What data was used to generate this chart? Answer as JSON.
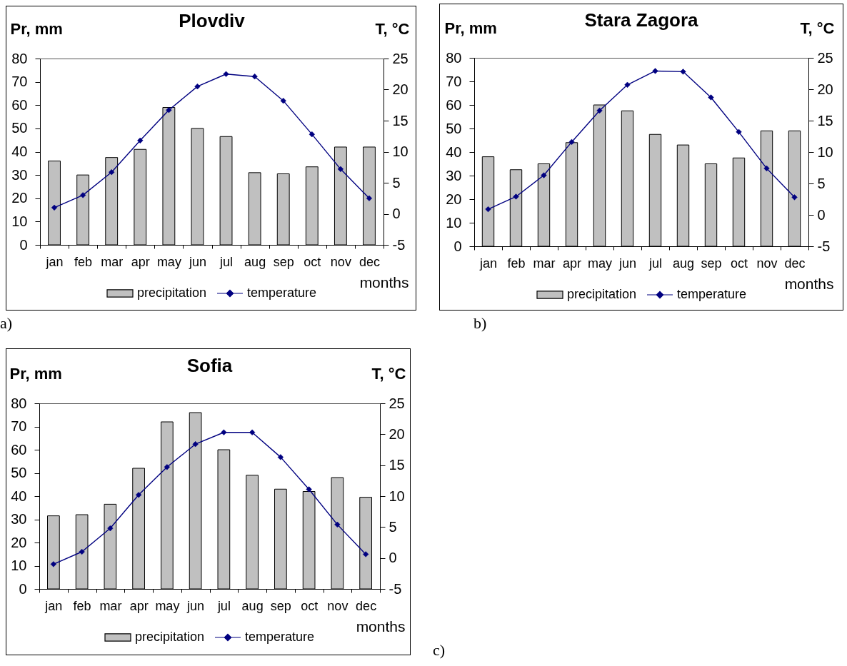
{
  "chart_data": [
    {
      "type": "bar",
      "title": "Plovdiv",
      "ylabel": "Pr, mm",
      "y2label": "T, °C",
      "xlabel": "months",
      "categories": [
        "jan",
        "feb",
        "mar",
        "apr",
        "may",
        "jun",
        "jul",
        "aug",
        "sep",
        "oct",
        "nov",
        "dec"
      ],
      "series": [
        {
          "name": "precipitation",
          "color": "#c0c0c0",
          "values": [
            36,
            30,
            37.5,
            41,
            59,
            50,
            46.5,
            31,
            30.5,
            33.5,
            42,
            42
          ]
        },
        {
          "name": "temperature",
          "type": "line",
          "axis": "y2",
          "color": "#000080",
          "values": [
            1.0,
            3.0,
            6.7,
            11.8,
            16.7,
            20.5,
            22.5,
            22.1,
            18.2,
            12.8,
            7.2,
            2.5
          ]
        }
      ],
      "ylim": [
        0,
        80
      ],
      "yticks": [
        0,
        10,
        20,
        30,
        40,
        50,
        60,
        70,
        80
      ],
      "y2lim": [
        -5,
        25
      ],
      "y2ticks": [
        -5,
        0,
        5,
        10,
        15,
        20,
        25
      ],
      "legend": "bottom",
      "marker": "diamond",
      "line_style": "solid",
      "annotations": [
        "a)"
      ]
    },
    {
      "type": "bar",
      "title": "Stara Zagora",
      "ylabel": "Pr, mm",
      "y2label": "T, °C",
      "xlabel": "months",
      "categories": [
        "jan",
        "feb",
        "mar",
        "apr",
        "may",
        "jun",
        "jul",
        "aug",
        "sep",
        "oct",
        "nov",
        "dec"
      ],
      "series": [
        {
          "name": "precipitation",
          "color": "#c0c0c0",
          "values": [
            38,
            32.5,
            35,
            44,
            60,
            57.5,
            47.5,
            43,
            35,
            37.5,
            49,
            49
          ]
        },
        {
          "name": "temperature",
          "type": "line",
          "axis": "y2",
          "color": "#000080",
          "values": [
            0.9,
            2.9,
            6.3,
            11.6,
            16.6,
            20.7,
            22.9,
            22.8,
            18.7,
            13.2,
            7.4,
            2.8
          ]
        }
      ],
      "ylim": [
        0,
        80
      ],
      "yticks": [
        0,
        10,
        20,
        30,
        40,
        50,
        60,
        70,
        80
      ],
      "y2lim": [
        -5,
        25
      ],
      "y2ticks": [
        -5,
        0,
        5,
        10,
        15,
        20,
        25
      ],
      "legend": "bottom",
      "marker": "diamond",
      "line_style": "solid",
      "annotations": [
        "b)"
      ]
    },
    {
      "type": "bar",
      "title": "Sofia",
      "ylabel": "Pr, mm",
      "y2label": "T, °C",
      "xlabel": "months",
      "categories": [
        "jan",
        "feb",
        "mar",
        "apr",
        "may",
        "jun",
        "jul",
        "aug",
        "sep",
        "oct",
        "nov",
        "dec"
      ],
      "series": [
        {
          "name": "precipitation",
          "color": "#c0c0c0",
          "values": [
            31.5,
            32,
            36.5,
            52,
            72,
            76,
            60,
            49,
            43,
            42,
            48,
            39.5
          ]
        },
        {
          "name": "temperature",
          "type": "line",
          "axis": "y2",
          "color": "#000080",
          "values": [
            -1.0,
            1.0,
            4.8,
            10.2,
            14.7,
            18.4,
            20.3,
            20.3,
            16.3,
            11.1,
            5.4,
            0.6
          ]
        }
      ],
      "ylim": [
        0,
        80
      ],
      "yticks": [
        0,
        10,
        20,
        30,
        40,
        50,
        60,
        70,
        80
      ],
      "y2lim": [
        -5,
        25
      ],
      "y2ticks": [
        -5,
        0,
        5,
        10,
        15,
        20,
        25
      ],
      "legend": "bottom",
      "marker": "diamond",
      "line_style": "solid",
      "annotations": [
        "c)"
      ]
    }
  ]
}
